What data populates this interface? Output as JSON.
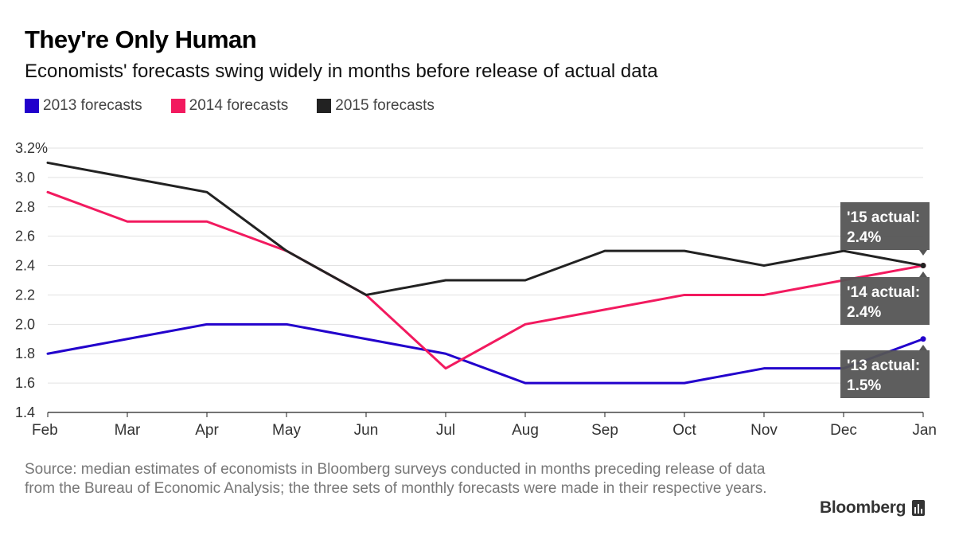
{
  "title": "They're Only Human",
  "subtitle": "Economists' forecasts swing widely in months before release of actual data",
  "source": "Source: median estimates of economists in Bloomberg surveys conducted in months preceding release of data from the Bureau of Economic Analysis; the three sets of monthly forecasts were made in their respective years.",
  "brand": "Bloomberg",
  "brand_icon": "bloomberg-chart-icon",
  "chart_data": {
    "type": "line",
    "categories": [
      "Feb",
      "Mar",
      "Apr",
      "May",
      "Jun",
      "Jul",
      "Aug",
      "Sep",
      "Oct",
      "Nov",
      "Dec",
      "Jan"
    ],
    "ylim": [
      1.4,
      3.2
    ],
    "yticks": [
      "3.2%",
      "3.0",
      "2.8",
      "2.6",
      "2.4",
      "2.2",
      "2.0",
      "1.8",
      "1.6",
      "1.4"
    ],
    "ytick_values": [
      3.2,
      3.0,
      2.8,
      2.6,
      2.4,
      2.2,
      2.0,
      1.8,
      1.6,
      1.4
    ],
    "grid": true,
    "legend_position": "top-left",
    "series": [
      {
        "name": "2013 forecasts",
        "color": "#2200cc",
        "values": [
          1.8,
          1.9,
          2.0,
          2.0,
          1.9,
          1.8,
          1.6,
          1.6,
          1.6,
          1.7,
          1.7,
          1.9
        ]
      },
      {
        "name": "2014 forecasts",
        "color": "#f21a5f",
        "values": [
          2.9,
          2.7,
          2.7,
          2.5,
          2.2,
          1.7,
          2.0,
          2.1,
          2.2,
          2.2,
          2.3,
          2.4
        ]
      },
      {
        "name": "2015 forecasts",
        "color": "#222222",
        "values": [
          3.1,
          3.0,
          2.9,
          2.5,
          2.2,
          2.3,
          2.3,
          2.5,
          2.5,
          2.4,
          2.5,
          2.4
        ]
      }
    ],
    "annotations": [
      {
        "line1": "'15 actual:",
        "line2": "2.4%",
        "value": 2.4
      },
      {
        "line1": "'14 actual:",
        "line2": "2.4%",
        "value": 2.4
      },
      {
        "line1": "'13 actual:",
        "line2": "1.5%",
        "value": 1.5
      }
    ]
  }
}
